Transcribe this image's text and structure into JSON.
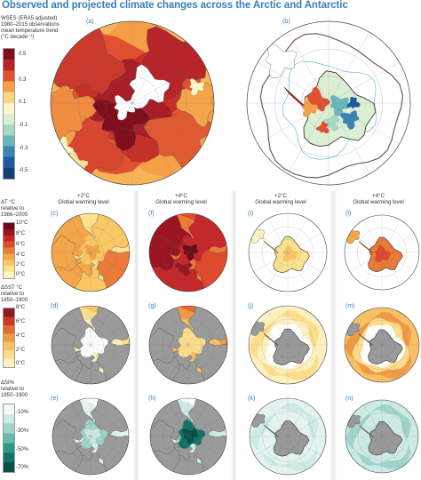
{
  "title": "Observed and projected climate changes across the Arctic and Antarctic",
  "top_legend": {
    "lines": [
      "WSES (ERA5 adjusted)",
      "1980–2015 observations",
      "mean temperature trend",
      "(°C decade⁻¹)"
    ],
    "ticks": [
      "0.5",
      "0.3",
      "0.1",
      "-0.1",
      "-0.3",
      "-0.5"
    ],
    "colors": [
      "#7f0f1c",
      "#b8232a",
      "#e2512f",
      "#f5a047",
      "#fcd585",
      "#fdf7c9",
      "#dcefd4",
      "#a8d9c2",
      "#6bb6b9",
      "#3a85b5",
      "#1f5a9e",
      "#173d7a"
    ]
  },
  "dT_legend": {
    "lines": [
      "ΔT °C",
      "relative to",
      "1986–2005"
    ],
    "ticks": [
      "10°C",
      "8°C",
      "6°C",
      "4°C",
      "2°C",
      "0°C"
    ],
    "colors": [
      "#6b0a18",
      "#9a1421",
      "#c5282a",
      "#de4a2e",
      "#ec7a38",
      "#f4a64a",
      "#f9c865",
      "#fce38f",
      "#fdf3c4"
    ]
  },
  "dSST_legend": {
    "lines": [
      "ΔSST °C",
      "relative to",
      "1850–1900"
    ],
    "ticks": [
      "8°C",
      "6°C",
      "4°C",
      "2°C",
      "0°C"
    ],
    "colors": [
      "#8f1a1f",
      "#c5382a",
      "#e26a34",
      "#f09a45",
      "#f7c165",
      "#fbdd8c",
      "#fdf1c0"
    ]
  },
  "dSI_legend": {
    "lines": [
      "ΔSI%",
      "relative to",
      "1850–1900"
    ],
    "ticks": [
      "-10%",
      "-30%",
      "-50%",
      "-70%"
    ],
    "colors": [
      "#f3f9f7",
      "#cdeae4",
      "#9fd4cb",
      "#67b9ad",
      "#2f968a",
      "#127367",
      "#0a5045"
    ]
  },
  "panels": {
    "a": "(a)",
    "b": "(b)",
    "c": "(c)",
    "d": "(d)",
    "e": "(e)",
    "f": "(f)",
    "g": "(g)",
    "h": "(h)",
    "i": "(i)",
    "j": "(j)",
    "k": "(k)",
    "l": "(l)",
    "m": "(m)",
    "n": "(n)"
  },
  "column_headers": [
    {
      "level": "+2°C",
      "caption": "Global warming level"
    },
    {
      "level": "+4°C",
      "caption": "Global warming level"
    },
    {
      "level": "+2°C",
      "caption": "Global warming level"
    },
    {
      "level": "+4°C",
      "caption": "Global warming level"
    }
  ]
}
